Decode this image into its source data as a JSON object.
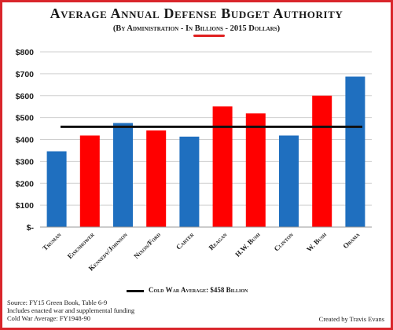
{
  "chart_data": {
    "type": "bar",
    "title": "Average Annual Defense Budget Authority",
    "subtitle": {
      "prefix": "(By Administration - In ",
      "highlight": "Billions",
      "suffix": " - 2015 Dollars)"
    },
    "categories": [
      "Truman",
      "Eisenhower",
      "Kennedy/Johnson",
      "Nixon/Ford",
      "Carter",
      "Reagan",
      "H.W. Bush",
      "Clinton",
      "W. Bush",
      "Obama"
    ],
    "values": [
      346,
      418,
      475,
      441,
      413,
      551,
      519,
      418,
      600,
      687
    ],
    "bar_colors": [
      "#1f6fbf",
      "#ff0000",
      "#1f6fbf",
      "#ff0000",
      "#1f6fbf",
      "#ff0000",
      "#ff0000",
      "#1f6fbf",
      "#ff0000",
      "#1f6fbf"
    ],
    "y_tick_labels": [
      "$-",
      "$100",
      "$200",
      "$300",
      "$400",
      "$500",
      "$600",
      "$700",
      "$800"
    ],
    "ylim": [
      0,
      800
    ],
    "ytick_step": 100,
    "grid": true,
    "reference_line": {
      "value": 458,
      "label": "Cold War Average:  $458 Billion",
      "color": "#111111"
    },
    "legend_position": "bottom"
  },
  "source_lines": [
    "Source:  FY15 Green Book, Table 6-9",
    "Includes enacted war and supplemental funding",
    "Cold War Average: FY1948-90"
  ],
  "credit": "Created by Travis Evans"
}
